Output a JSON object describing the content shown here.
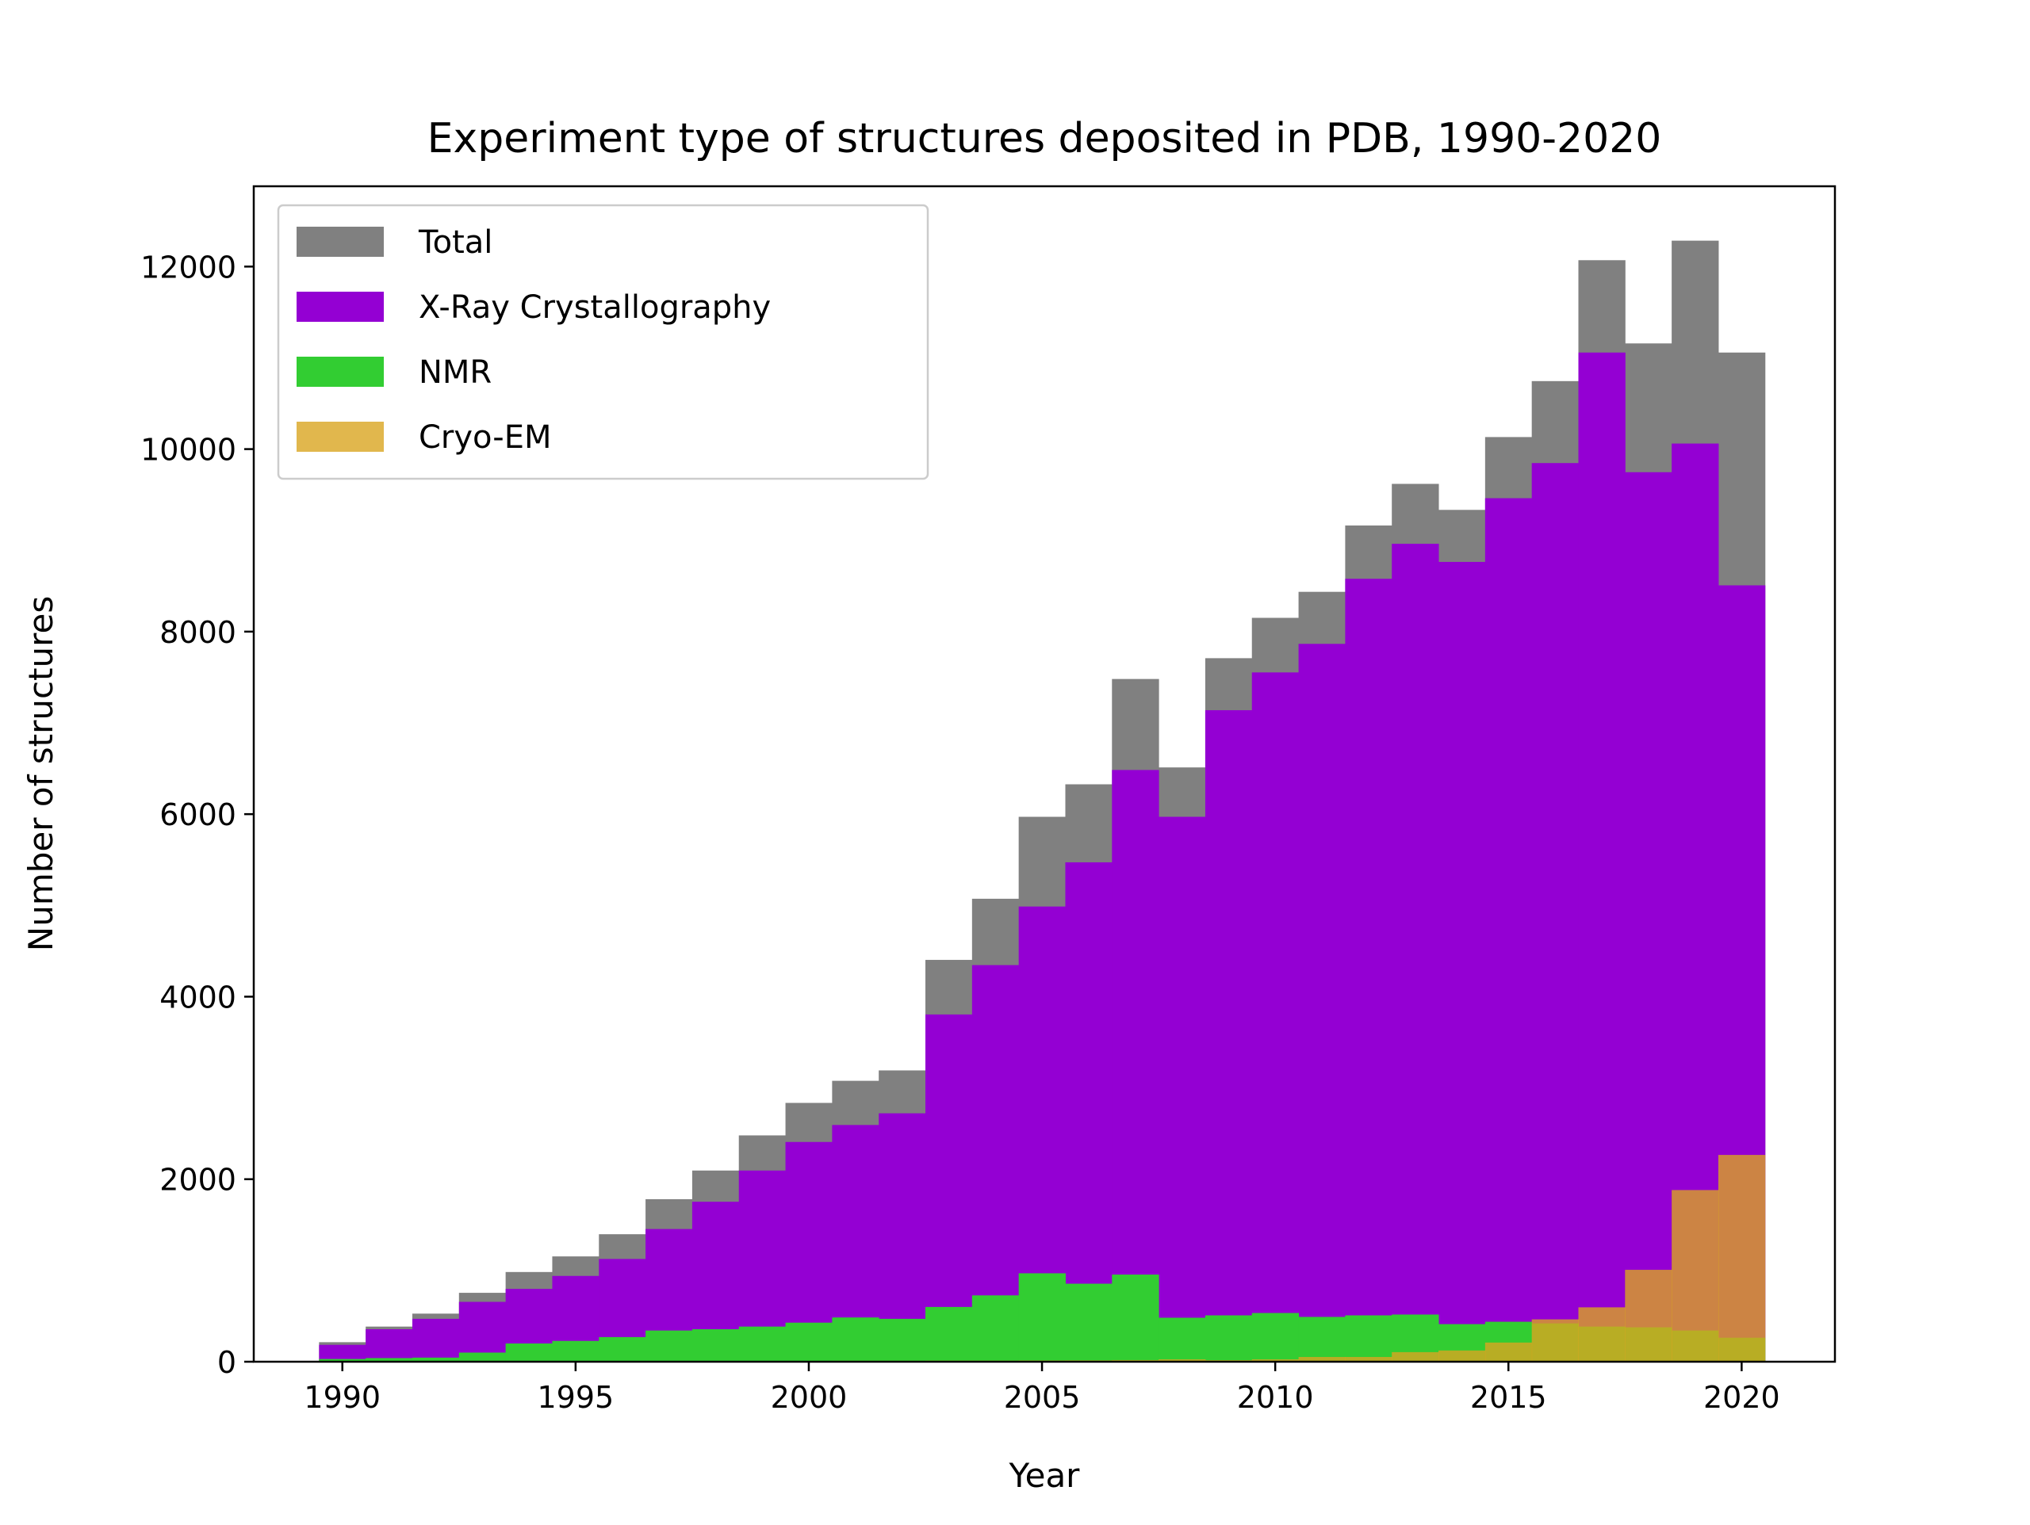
{
  "chart_data": {
    "type": "bar",
    "title": "Experiment type of structures deposited in PDB, 1990-2020",
    "xlabel": "Year",
    "ylabel": "Number of structures",
    "xlim": [
      1988.1,
      2022.0
    ],
    "ylim": [
      0,
      12880
    ],
    "xticks": [
      1990,
      1995,
      2000,
      2005,
      2010,
      2015,
      2020
    ],
    "yticks": [
      0,
      2000,
      4000,
      6000,
      8000,
      10000,
      12000
    ],
    "grid": false,
    "legend": "top-left",
    "x": [
      1990,
      1991,
      1992,
      1993,
      1994,
      1995,
      1996,
      1997,
      1998,
      1999,
      2000,
      2001,
      2002,
      2003,
      2004,
      2005,
      2006,
      2007,
      2008,
      2009,
      2010,
      2011,
      2012,
      2013,
      2014,
      2015,
      2016,
      2017,
      2018,
      2019,
      2020
    ],
    "series": [
      {
        "name": "Total",
        "color": "#808080",
        "alpha": 1,
        "values": [
          214,
          385,
          527,
          755,
          983,
          1154,
          1397,
          1781,
          2095,
          2480,
          2836,
          3078,
          3192,
          4403,
          5073,
          5971,
          6327,
          7481,
          6512,
          7709,
          8151,
          8436,
          9163,
          9619,
          9334,
          10132,
          10745,
          12070,
          11158,
          12284,
          11058
        ]
      },
      {
        "name": "X-Ray Crystallography",
        "color": "#9400d3",
        "alpha": 1,
        "values": [
          185,
          356,
          470,
          656,
          798,
          940,
          1126,
          1454,
          1753,
          2095,
          2408,
          2594,
          2722,
          3805,
          4346,
          4988,
          5472,
          6484,
          5971,
          7139,
          7553,
          7866,
          8579,
          8963,
          8764,
          9462,
          9847,
          11058,
          9747,
          10061,
          8507
        ]
      },
      {
        "name": "NMR",
        "color": "#32cd32",
        "alpha": 1,
        "values": [
          30,
          40,
          45,
          100,
          200,
          228,
          270,
          342,
          356,
          385,
          428,
          485,
          470,
          600,
          727,
          969,
          855,
          955,
          482,
          508,
          534,
          491,
          508,
          517,
          412,
          438,
          420,
          385,
          377,
          342,
          263
        ]
      },
      {
        "name": "Cryo-EM",
        "color": "#daa520",
        "alpha": 0.8,
        "values": [
          2,
          3,
          4,
          5,
          5,
          6,
          6,
          7,
          8,
          8,
          9,
          10,
          10,
          12,
          12,
          14,
          15,
          18,
          26,
          17,
          26,
          52,
          52,
          105,
          123,
          210,
          464,
          596,
          1007,
          1881,
          2266
        ]
      }
    ]
  }
}
